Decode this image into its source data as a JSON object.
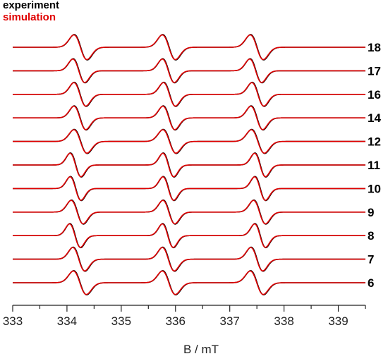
{
  "legend": {
    "experiment": "experiment",
    "simulation": "simulation",
    "experiment_color": "#000000",
    "simulation_color": "#e00000"
  },
  "chart_data": {
    "type": "line",
    "title": "",
    "xlabel": "B / mT",
    "ylabel": "",
    "xlim": [
      333,
      339.5
    ],
    "xticks": [
      333,
      334,
      335,
      336,
      337,
      338,
      339
    ],
    "grid": false,
    "legend_position": "top-left",
    "stacked": true,
    "series": [
      {
        "name": "experiment",
        "color": "#000000"
      },
      {
        "name": "simulation",
        "color": "#e00000"
      }
    ],
    "traces": [
      {
        "label": "18",
        "centers": [
          334.25,
          335.88,
          337.5
        ],
        "width": 0.12,
        "amplitude": 1.0
      },
      {
        "label": "17",
        "centers": [
          334.22,
          335.87,
          337.48
        ],
        "width": 0.11,
        "amplitude": 0.95
      },
      {
        "label": "16",
        "centers": [
          334.24,
          335.89,
          337.52
        ],
        "width": 0.11,
        "amplitude": 0.95
      },
      {
        "label": "14",
        "centers": [
          334.24,
          335.88,
          337.5
        ],
        "width": 0.11,
        "amplitude": 0.95
      },
      {
        "label": "12",
        "centers": [
          334.25,
          335.89,
          337.52
        ],
        "width": 0.12,
        "amplitude": 0.95
      },
      {
        "label": "11",
        "centers": [
          334.16,
          335.87,
          337.56
        ],
        "width": 0.1,
        "amplitude": 0.95
      },
      {
        "label": "10",
        "centers": [
          334.16,
          335.87,
          337.56
        ],
        "width": 0.1,
        "amplitude": 0.95
      },
      {
        "label": "9",
        "centers": [
          334.19,
          335.88,
          337.55
        ],
        "width": 0.11,
        "amplitude": 0.95
      },
      {
        "label": "8",
        "centers": [
          334.15,
          335.86,
          337.56
        ],
        "width": 0.1,
        "amplitude": 0.95
      },
      {
        "label": "7",
        "centers": [
          334.22,
          335.87,
          337.5
        ],
        "width": 0.11,
        "amplitude": 0.95
      },
      {
        "label": "6",
        "centers": [
          334.24,
          335.88,
          337.5
        ],
        "width": 0.12,
        "amplitude": 0.95
      }
    ]
  }
}
